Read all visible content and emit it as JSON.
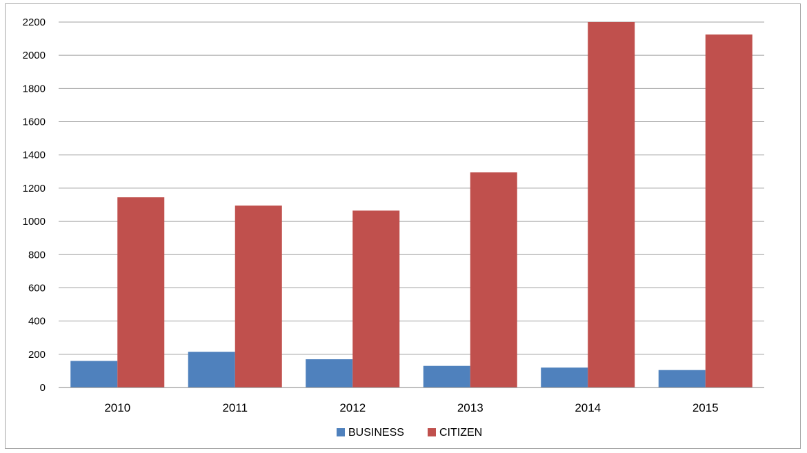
{
  "chart_data": {
    "type": "bar",
    "categories": [
      "2010",
      "2011",
      "2012",
      "2013",
      "2014",
      "2015"
    ],
    "series": [
      {
        "name": "BUSINESS",
        "color": "#4f81bd",
        "values": [
          160,
          215,
          170,
          130,
          120,
          105
        ]
      },
      {
        "name": "CITIZEN",
        "color": "#c0504d",
        "values": [
          1145,
          1095,
          1065,
          1295,
          2200,
          2125
        ]
      }
    ],
    "title": "",
    "xlabel": "",
    "ylabel": "",
    "ylim": [
      0,
      2200
    ],
    "yticks": [
      0,
      200,
      400,
      600,
      800,
      1000,
      1200,
      1400,
      1600,
      1800,
      2000,
      2200
    ],
    "grid": true,
    "legend_position": "bottom"
  }
}
